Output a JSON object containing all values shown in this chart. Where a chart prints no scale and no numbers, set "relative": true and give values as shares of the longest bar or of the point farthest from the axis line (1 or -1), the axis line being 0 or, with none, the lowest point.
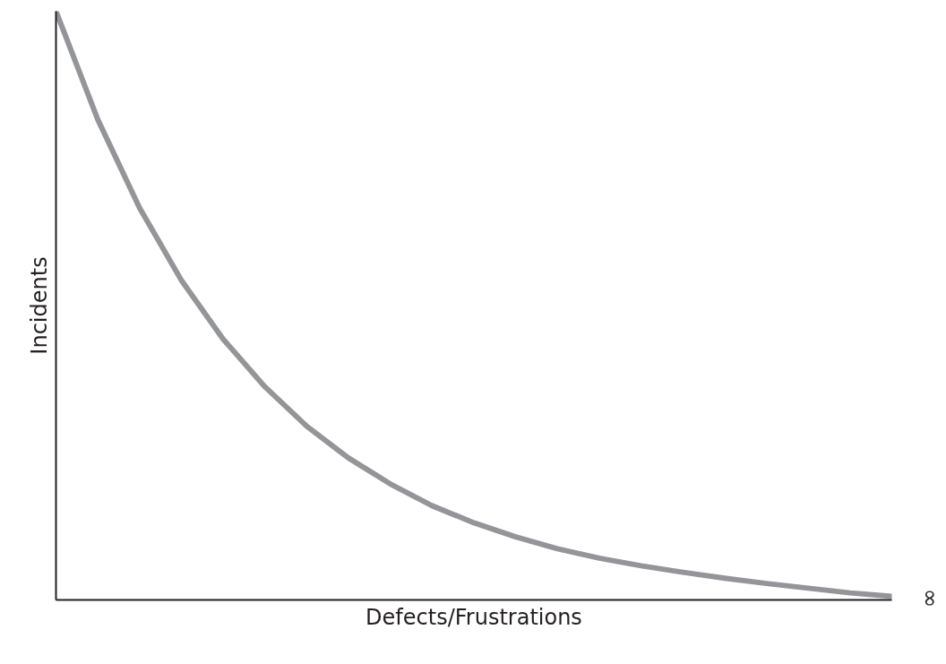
{
  "chart_data": {
    "type": "line",
    "relative": true,
    "xlabel": "Defects/Frustrations",
    "ylabel": "Incidents",
    "categories": [
      null,
      null,
      null,
      null,
      null,
      null,
      null,
      null,
      null,
      null,
      null,
      null,
      null,
      null,
      null,
      null,
      null,
      null,
      null,
      null,
      null
    ],
    "series": [
      {
        "color": "#939598",
        "values": [
          1,
          0.816,
          0.666,
          0.543,
          0.443,
          0.362,
          0.295,
          0.241,
          0.197,
          0.16,
          0.131,
          0.107,
          0.087,
          0.071,
          0.058,
          0.047,
          0.037,
          0.028,
          0.02,
          0.012,
          0.006
        ]
      }
    ],
    "annotations": [
      "∞"
    ],
    "line_style": "solid"
  }
}
